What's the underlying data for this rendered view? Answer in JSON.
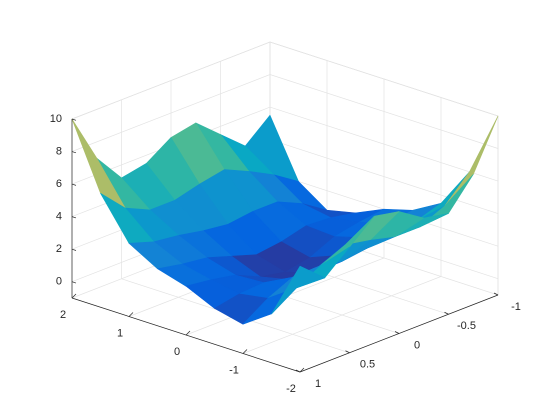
{
  "chart_data": {
    "type": "surface",
    "x": [
      -2,
      -1.5,
      -1,
      -0.5,
      0,
      0.5,
      1,
      1.5,
      2
    ],
    "y": [
      -1,
      -0.75,
      -0.5,
      -0.25,
      0,
      0.25,
      0.5,
      0.75,
      1
    ],
    "z": [
      [
        10,
        6,
        3.5,
        2.5,
        2,
        1.2,
        0.8,
        2,
        5.5
      ],
      [
        7,
        4.5,
        3,
        2.2,
        1.8,
        1.5,
        1.8,
        3,
        4.2
      ],
      [
        5.2,
        3.8,
        2.8,
        2,
        1.5,
        1.6,
        2.5,
        3.8,
        5.5
      ],
      [
        5.5,
        3.8,
        2.5,
        1.5,
        0.8,
        1.2,
        2.5,
        4.5,
        6.8
      ],
      [
        6.5,
        4.2,
        2.3,
        1,
        0.5,
        1,
        2.3,
        4.2,
        6.5
      ],
      [
        6.8,
        4.5,
        2.5,
        1.2,
        0.8,
        1.5,
        2.5,
        3.8,
        5.5
      ],
      [
        5.5,
        3.8,
        2.5,
        1.6,
        1.5,
        2,
        2.8,
        3.8,
        5.2
      ],
      [
        4.2,
        3,
        1.8,
        1.5,
        1.8,
        2.2,
        3,
        4.5,
        7
      ],
      [
        5.5,
        2,
        0.8,
        1.2,
        2,
        2.5,
        3.5,
        6,
        10
      ]
    ],
    "xlim": [
      -2,
      2
    ],
    "ylim": [
      -1,
      1
    ],
    "zlim": [
      -1,
      10
    ],
    "xticks": [
      -2,
      -1,
      0,
      1,
      2
    ],
    "yticks": [
      -1,
      -0.5,
      0,
      0.5,
      1
    ],
    "zticks": [
      0,
      2,
      4,
      6,
      8,
      10
    ],
    "grid": true,
    "colormap": [
      "#352a87",
      "#0363e1",
      "#1485d4",
      "#06a7c6",
      "#38b99e",
      "#92bf73",
      "#d9ba56",
      "#fcce2e",
      "#f9fb0e"
    ]
  }
}
